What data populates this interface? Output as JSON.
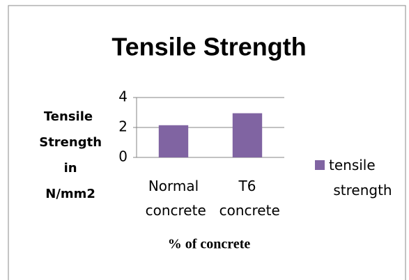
{
  "chart_data": {
    "type": "bar",
    "title": "Tensile Strength",
    "categories": [
      "Normal concrete",
      "T6 concrete"
    ],
    "series": [
      {
        "name": "tensile strength",
        "color": "#8064a2",
        "values": [
          2.15,
          2.95
        ]
      }
    ],
    "ylim": [
      0,
      4
    ],
    "yticks": [
      0,
      2,
      4
    ],
    "grid": true,
    "y_label": "Tensile Strength in N/mm2",
    "x_label": "% of concrete",
    "legend": "right"
  }
}
